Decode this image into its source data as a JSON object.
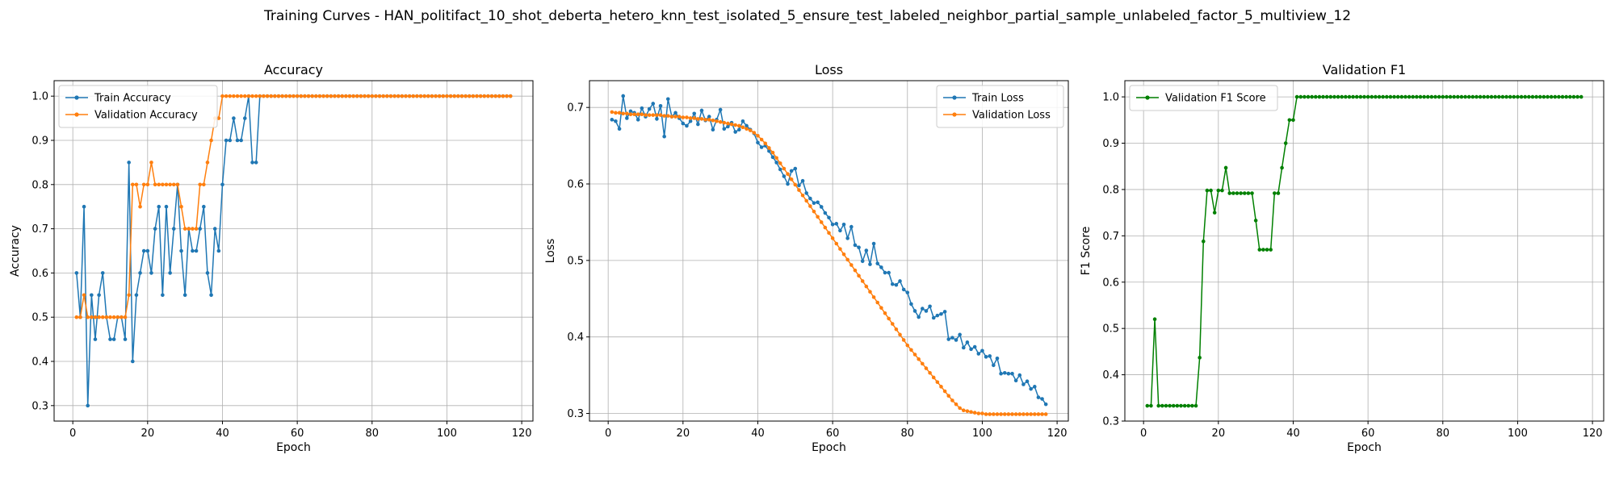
{
  "suptitle": "Training Curves - HAN_politifact_10_shot_deberta_hetero_knn_test_isolated_5_ensure_test_labeled_neighbor_partial_sample_unlabeled_factor_5_multiview_12",
  "colors": {
    "train": "#1f77b4",
    "validation": "#ff7f0e",
    "f1": "#008000",
    "grid": "#b0b0b0"
  },
  "chart_data": [
    {
      "type": "line",
      "title": "Accuracy",
      "xlabel": "Epoch",
      "ylabel": "Accuracy",
      "xlim": [
        -5,
        123
      ],
      "ylim": [
        0.265,
        1.035
      ],
      "xticks": [
        0,
        20,
        40,
        60,
        80,
        100,
        120
      ],
      "yticks": [
        0.3,
        0.4,
        0.5,
        0.6,
        0.7,
        0.8,
        0.9,
        1.0
      ],
      "ytick_labels": [
        "0.3",
        "0.4",
        "0.5",
        "0.6",
        "0.7",
        "0.8",
        "0.9",
        "1.0"
      ],
      "grid": true,
      "legend": "top-left",
      "series": [
        {
          "name": "Train Accuracy",
          "color": "train",
          "x_start": 1,
          "values": [
            0.6,
            0.5,
            0.75,
            0.3,
            0.55,
            0.45,
            0.55,
            0.6,
            0.5,
            0.45,
            0.45,
            0.5,
            0.5,
            0.45,
            0.85,
            0.4,
            0.55,
            0.6,
            0.65,
            0.65,
            0.6,
            0.7,
            0.75,
            0.55,
            0.75,
            0.6,
            0.7,
            0.8,
            0.65,
            0.55,
            0.7,
            0.65,
            0.65,
            0.7,
            0.75,
            0.6,
            0.55,
            0.7,
            0.65,
            0.8,
            0.9,
            0.9,
            0.95,
            0.9,
            0.9,
            0.95,
            1.0,
            0.85,
            0.85,
            1.0,
            1.0,
            1.0,
            1.0,
            1.0,
            1.0,
            1.0,
            1.0,
            1.0,
            1.0,
            1.0,
            1.0,
            1.0,
            1.0,
            1.0,
            1.0,
            1.0,
            1.0,
            1.0,
            1.0,
            1.0,
            1.0,
            1.0,
            1.0,
            1.0,
            1.0,
            1.0,
            1.0,
            1.0,
            1.0,
            1.0,
            1.0,
            1.0,
            1.0,
            1.0,
            1.0,
            1.0,
            1.0,
            1.0,
            1.0,
            1.0,
            1.0,
            1.0,
            1.0,
            1.0,
            1.0,
            1.0,
            1.0,
            1.0,
            1.0,
            1.0,
            1.0,
            1.0,
            1.0,
            1.0,
            1.0,
            1.0,
            1.0,
            1.0,
            1.0,
            1.0,
            1.0,
            1.0,
            1.0,
            1.0,
            1.0,
            1.0,
            1.0
          ]
        },
        {
          "name": "Validation Accuracy",
          "color": "validation",
          "x_start": 1,
          "values": [
            0.5,
            0.5,
            0.55,
            0.5,
            0.5,
            0.5,
            0.5,
            0.5,
            0.5,
            0.5,
            0.5,
            0.5,
            0.5,
            0.5,
            0.55,
            0.8,
            0.8,
            0.75,
            0.8,
            0.8,
            0.85,
            0.8,
            0.8,
            0.8,
            0.8,
            0.8,
            0.8,
            0.8,
            0.75,
            0.7,
            0.7,
            0.7,
            0.7,
            0.8,
            0.8,
            0.85,
            0.9,
            0.95,
            0.95,
            1.0,
            1.0,
            1.0,
            1.0,
            1.0,
            1.0,
            1.0,
            1.0,
            1.0,
            1.0,
            1.0,
            1.0,
            1.0,
            1.0,
            1.0,
            1.0,
            1.0,
            1.0,
            1.0,
            1.0,
            1.0,
            1.0,
            1.0,
            1.0,
            1.0,
            1.0,
            1.0,
            1.0,
            1.0,
            1.0,
            1.0,
            1.0,
            1.0,
            1.0,
            1.0,
            1.0,
            1.0,
            1.0,
            1.0,
            1.0,
            1.0,
            1.0,
            1.0,
            1.0,
            1.0,
            1.0,
            1.0,
            1.0,
            1.0,
            1.0,
            1.0,
            1.0,
            1.0,
            1.0,
            1.0,
            1.0,
            1.0,
            1.0,
            1.0,
            1.0,
            1.0,
            1.0,
            1.0,
            1.0,
            1.0,
            1.0,
            1.0,
            1.0,
            1.0,
            1.0,
            1.0,
            1.0,
            1.0,
            1.0,
            1.0,
            1.0,
            1.0,
            1.0
          ]
        }
      ]
    },
    {
      "type": "line",
      "title": "Loss",
      "xlabel": "Epoch",
      "ylabel": "Loss",
      "xlim": [
        -5,
        123
      ],
      "ylim": [
        0.29,
        0.735
      ],
      "xticks": [
        0,
        20,
        40,
        60,
        80,
        100,
        120
      ],
      "yticks": [
        0.3,
        0.4,
        0.5,
        0.6,
        0.7
      ],
      "ytick_labels": [
        "0.3",
        "0.4",
        "0.5",
        "0.6",
        "0.7"
      ],
      "grid": true,
      "legend": "top-right",
      "series": [
        {
          "name": "Train Loss",
          "color": "train",
          "x_start": 1,
          "values": [
            0.684,
            0.682,
            0.672,
            0.715,
            0.686,
            0.695,
            0.693,
            0.684,
            0.699,
            0.688,
            0.698,
            0.705,
            0.685,
            0.702,
            0.662,
            0.711,
            0.688,
            0.693,
            0.686,
            0.679,
            0.676,
            0.682,
            0.692,
            0.678,
            0.696,
            0.683,
            0.688,
            0.671,
            0.684,
            0.697,
            0.672,
            0.675,
            0.68,
            0.668,
            0.671,
            0.682,
            0.676,
            0.671,
            0.666,
            0.654,
            0.648,
            0.65,
            0.643,
            0.635,
            0.628,
            0.619,
            0.61,
            0.6,
            0.617,
            0.62,
            0.598,
            0.604,
            0.588,
            0.581,
            0.575,
            0.576,
            0.57,
            0.562,
            0.556,
            0.547,
            0.548,
            0.539,
            0.547,
            0.529,
            0.544,
            0.52,
            0.517,
            0.499,
            0.513,
            0.495,
            0.522,
            0.496,
            0.491,
            0.484,
            0.484,
            0.469,
            0.468,
            0.473,
            0.462,
            0.458,
            0.443,
            0.434,
            0.426,
            0.437,
            0.434,
            0.44,
            0.425,
            0.428,
            0.43,
            0.433,
            0.397,
            0.399,
            0.396,
            0.403,
            0.386,
            0.393,
            0.384,
            0.387,
            0.378,
            0.382,
            0.374,
            0.375,
            0.363,
            0.372,
            0.352,
            0.353,
            0.352,
            0.352,
            0.343,
            0.35,
            0.338,
            0.342,
            0.332,
            0.335,
            0.321,
            0.319,
            0.312
          ]
        },
        {
          "name": "Validation Loss",
          "color": "validation",
          "x_start": 1,
          "values": [
            0.694,
            0.693,
            0.693,
            0.692,
            0.692,
            0.691,
            0.691,
            0.691,
            0.691,
            0.69,
            0.69,
            0.69,
            0.69,
            0.69,
            0.689,
            0.689,
            0.688,
            0.688,
            0.688,
            0.687,
            0.687,
            0.686,
            0.686,
            0.685,
            0.685,
            0.684,
            0.684,
            0.683,
            0.682,
            0.681,
            0.68,
            0.679,
            0.678,
            0.677,
            0.676,
            0.674,
            0.672,
            0.67,
            0.667,
            0.663,
            0.658,
            0.653,
            0.647,
            0.641,
            0.634,
            0.627,
            0.62,
            0.613,
            0.606,
            0.599,
            0.592,
            0.585,
            0.578,
            0.571,
            0.564,
            0.557,
            0.55,
            0.543,
            0.536,
            0.529,
            0.522,
            0.515,
            0.508,
            0.501,
            0.494,
            0.487,
            0.48,
            0.473,
            0.466,
            0.459,
            0.452,
            0.445,
            0.438,
            0.431,
            0.424,
            0.417,
            0.41,
            0.403,
            0.396,
            0.389,
            0.383,
            0.377,
            0.371,
            0.365,
            0.359,
            0.353,
            0.347,
            0.341,
            0.335,
            0.329,
            0.323,
            0.317,
            0.312,
            0.307,
            0.304,
            0.303,
            0.302,
            0.301,
            0.3,
            0.3,
            0.299,
            0.299,
            0.299,
            0.299,
            0.299,
            0.299,
            0.299,
            0.299,
            0.299,
            0.299,
            0.299,
            0.299,
            0.299,
            0.299,
            0.299,
            0.299,
            0.299
          ]
        }
      ]
    },
    {
      "type": "line",
      "title": "Validation F1",
      "xlabel": "Epoch",
      "ylabel": "F1 Score",
      "xlim": [
        -5,
        123
      ],
      "ylim": [
        0.3,
        1.035
      ],
      "xticks": [
        0,
        20,
        40,
        60,
        80,
        100,
        120
      ],
      "yticks": [
        0.3,
        0.4,
        0.5,
        0.6,
        0.7,
        0.8,
        0.9,
        1.0
      ],
      "ytick_labels": [
        "0.3",
        "0.4",
        "0.5",
        "0.6",
        "0.7",
        "0.8",
        "0.9",
        "1.0"
      ],
      "grid": true,
      "legend": "top-left",
      "series": [
        {
          "name": "Validation F1 Score",
          "color": "f1",
          "x_start": 1,
          "values": [
            0.333,
            0.333,
            0.52,
            0.333,
            0.333,
            0.333,
            0.333,
            0.333,
            0.333,
            0.333,
            0.333,
            0.333,
            0.333,
            0.333,
            0.437,
            0.688,
            0.798,
            0.798,
            0.75,
            0.798,
            0.798,
            0.847,
            0.792,
            0.792,
            0.792,
            0.792,
            0.792,
            0.792,
            0.792,
            0.733,
            0.67,
            0.67,
            0.67,
            0.67,
            0.792,
            0.792,
            0.847,
            0.9,
            0.95,
            0.95,
            1.0,
            1.0,
            1.0,
            1.0,
            1.0,
            1.0,
            1.0,
            1.0,
            1.0,
            1.0,
            1.0,
            1.0,
            1.0,
            1.0,
            1.0,
            1.0,
            1.0,
            1.0,
            1.0,
            1.0,
            1.0,
            1.0,
            1.0,
            1.0,
            1.0,
            1.0,
            1.0,
            1.0,
            1.0,
            1.0,
            1.0,
            1.0,
            1.0,
            1.0,
            1.0,
            1.0,
            1.0,
            1.0,
            1.0,
            1.0,
            1.0,
            1.0,
            1.0,
            1.0,
            1.0,
            1.0,
            1.0,
            1.0,
            1.0,
            1.0,
            1.0,
            1.0,
            1.0,
            1.0,
            1.0,
            1.0,
            1.0,
            1.0,
            1.0,
            1.0,
            1.0,
            1.0,
            1.0,
            1.0,
            1.0,
            1.0,
            1.0,
            1.0,
            1.0,
            1.0,
            1.0,
            1.0,
            1.0,
            1.0,
            1.0,
            1.0,
            1.0
          ]
        }
      ]
    }
  ]
}
